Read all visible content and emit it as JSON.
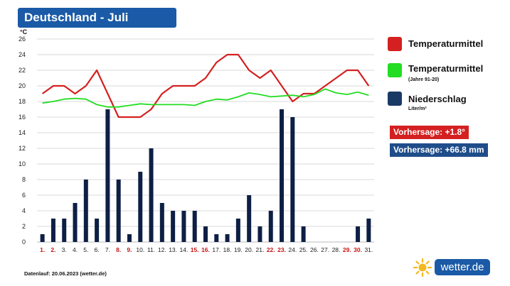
{
  "header": {
    "title": "Deutschland - Juli"
  },
  "legend": {
    "temp_label": "Temperaturmittel",
    "temp_color": "#d42020",
    "avg_label": "Temperaturmittel",
    "avg_sub": "(Jahre 91-20)",
    "avg_color": "#22dd22",
    "precip_label": "Niederschlag",
    "precip_sub": "Liter/m²",
    "precip_color": "#1a3a66"
  },
  "forecast": {
    "temp": "Vorhersage: +1.8°",
    "temp_color": "#d42020",
    "precip": "Vorhersage: +66.8 mm",
    "precip_color": "#1f4d8a"
  },
  "footer": {
    "text": "Datenlauf: 20.06.2023 (wetter.de)"
  },
  "brand": {
    "name": "wetter.de"
  },
  "chart_data": {
    "type": "bar",
    "ylabel": "°C",
    "ylim": [
      0,
      26
    ],
    "yticks": [
      0,
      2,
      4,
      6,
      8,
      10,
      12,
      14,
      16,
      18,
      20,
      22,
      24,
      26
    ],
    "grid": true,
    "legend_position": "right",
    "categories": [
      "1.",
      "2.",
      "3.",
      "4.",
      "5.",
      "6.",
      "7.",
      "8.",
      "9.",
      "10.",
      "11.",
      "12.",
      "13.",
      "14.",
      "15.",
      "16.",
      "17.",
      "18.",
      "19.",
      "20.",
      "21.",
      "22.",
      "23.",
      "24.",
      "25.",
      "26.",
      "27.",
      "28.",
      "29.",
      "30.",
      "31."
    ],
    "weekend_days": [
      "1.",
      "2.",
      "8.",
      "9.",
      "15.",
      "16.",
      "22.",
      "23.",
      "29.",
      "30."
    ],
    "weekend_color": "#c81414",
    "series": [
      {
        "name": "Niederschlag",
        "type": "bar",
        "color": "#0e1f45",
        "values": [
          1,
          3,
          3,
          5,
          8,
          3,
          17,
          8,
          1,
          9,
          12,
          5,
          4,
          4,
          4,
          2,
          1,
          1,
          3,
          6,
          2,
          4,
          17,
          16,
          2,
          0,
          0,
          0,
          0,
          2,
          3
        ]
      },
      {
        "name": "Temperaturmittel",
        "type": "line",
        "color": "#d42020",
        "values": [
          19,
          20,
          20,
          19,
          20,
          22,
          19,
          16,
          16,
          16,
          17,
          19,
          20,
          20,
          20,
          21,
          23,
          24,
          24,
          22,
          21,
          22,
          20,
          18,
          19,
          19,
          20,
          21,
          22,
          22,
          20
        ]
      },
      {
        "name": "Temperaturmittel (Jahre 91-20)",
        "type": "line",
        "color": "#22dd22",
        "values": [
          17.8,
          18.0,
          18.3,
          18.4,
          18.3,
          17.6,
          17.3,
          17.3,
          17.5,
          17.7,
          17.6,
          17.6,
          17.6,
          17.6,
          17.5,
          18.0,
          18.3,
          18.2,
          18.6,
          19.1,
          18.9,
          18.6,
          18.7,
          18.8,
          18.6,
          18.9,
          19.6,
          19.1,
          18.9,
          19.2,
          18.8
        ]
      }
    ]
  }
}
